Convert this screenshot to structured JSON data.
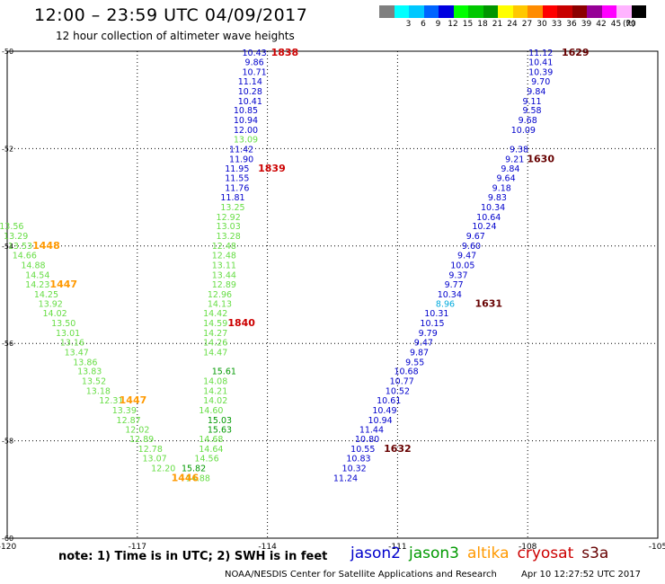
{
  "header": {
    "title": "12:00 – 23:59 UTC 04/09/2017",
    "subtitle": "12 hour collection of altimeter wave heights"
  },
  "colorbar": {
    "unit": "(ft)",
    "cells": [
      {
        "color": "#7f7f7f",
        "label": ""
      },
      {
        "color": "#00ffff",
        "label": "3"
      },
      {
        "color": "#00c8ff",
        "label": "6"
      },
      {
        "color": "#0064ff",
        "label": "9"
      },
      {
        "color": "#0000e0",
        "label": "12"
      },
      {
        "color": "#00ff00",
        "label": "15"
      },
      {
        "color": "#00c800",
        "label": "18"
      },
      {
        "color": "#009600",
        "label": "21"
      },
      {
        "color": "#ffff00",
        "label": "24"
      },
      {
        "color": "#ffc800",
        "label": "27"
      },
      {
        "color": "#ff8c00",
        "label": "30"
      },
      {
        "color": "#ff0000",
        "label": "33"
      },
      {
        "color": "#c80000",
        "label": "36"
      },
      {
        "color": "#8c0000",
        "label": "39"
      },
      {
        "color": "#960096",
        "label": "42"
      },
      {
        "color": "#ff00ff",
        "label": "45"
      },
      {
        "color": "#ffb4ff",
        "label": "70"
      },
      {
        "color": "#000000",
        "label": ""
      }
    ]
  },
  "colors": {
    "jason2": "#0000cc",
    "jason3": "#009900",
    "altika": "#ff9900",
    "cryosat": "#cc0000",
    "s3a": "#660000",
    "light_green": "#66dd44",
    "light_blue": "#00aadd"
  },
  "chart_data": {
    "type": "scatter",
    "xlim": [
      -120,
      -105
    ],
    "ylim": [
      -60,
      -50
    ],
    "x_ticks": [
      "-120",
      "-117",
      "-114",
      "-111",
      "-108",
      "-105"
    ],
    "y_ticks": [
      "-50",
      "-52",
      "-54",
      "-56",
      "-58",
      "-60"
    ],
    "grid": true,
    "series": [
      {
        "name": "jason2",
        "color": "#0000cc",
        "points": [
          {
            "x": -114.3,
            "y": -50.04,
            "label": "10.43"
          },
          {
            "x": -114.3,
            "y": -50.23,
            "label": "9.86"
          },
          {
            "x": -114.3,
            "y": -50.43,
            "label": "10.71"
          },
          {
            "x": -114.4,
            "y": -50.63,
            "label": "11.14"
          },
          {
            "x": -114.4,
            "y": -50.83,
            "label": "10.28"
          },
          {
            "x": -114.4,
            "y": -51.03,
            "label": "10.41"
          },
          {
            "x": -114.5,
            "y": -51.22,
            "label": "10.85"
          },
          {
            "x": -114.5,
            "y": -51.42,
            "label": "10.94"
          },
          {
            "x": -114.5,
            "y": -51.62,
            "label": "12.00"
          },
          {
            "x": -114.6,
            "y": -52.02,
            "label": "11.42"
          },
          {
            "x": -114.6,
            "y": -52.22,
            "label": "11.90"
          },
          {
            "x": -114.7,
            "y": -52.42,
            "label": "11.95"
          },
          {
            "x": -114.7,
            "y": -52.61,
            "label": "11.55"
          },
          {
            "x": -114.7,
            "y": -52.81,
            "label": "11.76"
          },
          {
            "x": -114.8,
            "y": -53.01,
            "label": "11.81"
          },
          {
            "x": -107.7,
            "y": -50.04,
            "label": "11.12"
          },
          {
            "x": -107.7,
            "y": -50.23,
            "label": "10.41"
          },
          {
            "x": -107.7,
            "y": -50.43,
            "label": "10.39"
          },
          {
            "x": -107.7,
            "y": -50.63,
            "label": "9.70"
          },
          {
            "x": -107.8,
            "y": -50.83,
            "label": "9.84"
          },
          {
            "x": -107.9,
            "y": -51.03,
            "label": "9.11"
          },
          {
            "x": -107.9,
            "y": -51.22,
            "label": "9.58"
          },
          {
            "x": -108.0,
            "y": -51.42,
            "label": "9.68"
          },
          {
            "x": -108.1,
            "y": -51.62,
            "label": "10.09"
          },
          {
            "x": -108.2,
            "y": -52.02,
            "label": "9.38"
          },
          {
            "x": -108.3,
            "y": -52.22,
            "label": "9.21"
          },
          {
            "x": -108.4,
            "y": -52.42,
            "label": "9.84"
          },
          {
            "x": -108.5,
            "y": -52.61,
            "label": "9.64"
          },
          {
            "x": -108.6,
            "y": -52.81,
            "label": "9.18"
          },
          {
            "x": -108.7,
            "y": -53.01,
            "label": "9.83"
          },
          {
            "x": -108.8,
            "y": -53.21,
            "label": "10.34"
          },
          {
            "x": -108.9,
            "y": -53.41,
            "label": "10.64"
          },
          {
            "x": -109.0,
            "y": -53.6,
            "label": "10.24"
          },
          {
            "x": -109.2,
            "y": -53.8,
            "label": "9.67"
          },
          {
            "x": -109.3,
            "y": -54.0,
            "label": "9.60"
          },
          {
            "x": -109.4,
            "y": -54.2,
            "label": "9.47"
          },
          {
            "x": -109.5,
            "y": -54.4,
            "label": "10.05"
          },
          {
            "x": -109.6,
            "y": -54.6,
            "label": "9.37"
          },
          {
            "x": -109.7,
            "y": -54.8,
            "label": "9.77"
          },
          {
            "x": -109.8,
            "y": -55.0,
            "label": "10.34"
          },
          {
            "x": -110.1,
            "y": -55.39,
            "label": "10.31"
          },
          {
            "x": -110.2,
            "y": -55.59,
            "label": "10.15"
          },
          {
            "x": -110.3,
            "y": -55.79,
            "label": "9.79"
          },
          {
            "x": -110.4,
            "y": -55.99,
            "label": "9.47"
          },
          {
            "x": -110.5,
            "y": -56.19,
            "label": "9.87"
          },
          {
            "x": -110.6,
            "y": -56.39,
            "label": "9.55"
          },
          {
            "x": -110.8,
            "y": -56.58,
            "label": "10.68"
          },
          {
            "x": -110.9,
            "y": -56.78,
            "label": "10.77"
          },
          {
            "x": -111.0,
            "y": -56.98,
            "label": "10.52"
          },
          {
            "x": -111.2,
            "y": -57.18,
            "label": "10.61"
          },
          {
            "x": -111.3,
            "y": -57.38,
            "label": "10.49"
          },
          {
            "x": -111.4,
            "y": -57.58,
            "label": "10.94"
          },
          {
            "x": -111.6,
            "y": -57.78,
            "label": "11.44"
          },
          {
            "x": -111.7,
            "y": -57.97,
            "label": "10.80"
          },
          {
            "x": -111.8,
            "y": -58.17,
            "label": "10.55"
          },
          {
            "x": -111.9,
            "y": -58.37,
            "label": "10.83"
          },
          {
            "x": -112.0,
            "y": -58.57,
            "label": "10.32"
          },
          {
            "x": -112.2,
            "y": -58.77,
            "label": "11.24"
          }
        ]
      },
      {
        "name": "jason3",
        "color": "#009900",
        "points": [
          {
            "x": -115.0,
            "y": -56.58,
            "label": "15.61"
          },
          {
            "x": -115.1,
            "y": -57.58,
            "label": "15.03"
          },
          {
            "x": -115.1,
            "y": -57.78,
            "label": "15.63"
          },
          {
            "x": -115.7,
            "y": -58.57,
            "label": "15.82"
          }
        ]
      },
      {
        "name": "altika",
        "color": "#ff9900",
        "points": []
      },
      {
        "name": "cryosat",
        "color": "#cc0000",
        "points": []
      },
      {
        "name": "s3a",
        "color": "#660000",
        "points": []
      }
    ],
    "light_green_points": [
      {
        "x": -114.5,
        "y": -51.82,
        "label": "13.09"
      },
      {
        "x": -114.8,
        "y": -53.21,
        "label": "13.25"
      },
      {
        "x": -114.9,
        "y": -53.41,
        "label": "12.92"
      },
      {
        "x": -114.9,
        "y": -53.6,
        "label": "13.03"
      },
      {
        "x": -114.9,
        "y": -53.8,
        "label": "13.28"
      },
      {
        "x": -115.0,
        "y": -54.0,
        "label": "12.48"
      },
      {
        "x": -115.0,
        "y": -54.2,
        "label": "12.48"
      },
      {
        "x": -115.0,
        "y": -54.4,
        "label": "13.11"
      },
      {
        "x": -115.0,
        "y": -54.6,
        "label": "13.44"
      },
      {
        "x": -115.0,
        "y": -54.8,
        "label": "12.89"
      },
      {
        "x": -115.1,
        "y": -55.0,
        "label": "12.96"
      },
      {
        "x": -115.1,
        "y": -55.19,
        "label": "14.13"
      },
      {
        "x": -115.2,
        "y": -55.39,
        "label": "14.42"
      },
      {
        "x": -115.2,
        "y": -55.59,
        "label": "14.59"
      },
      {
        "x": -115.2,
        "y": -55.79,
        "label": "14.27"
      },
      {
        "x": -115.2,
        "y": -55.99,
        "label": "14.26"
      },
      {
        "x": -115.2,
        "y": -56.19,
        "label": "14.47"
      },
      {
        "x": -115.2,
        "y": -56.78,
        "label": "14.08"
      },
      {
        "x": -115.2,
        "y": -56.98,
        "label": "14.21"
      },
      {
        "x": -115.2,
        "y": -57.18,
        "label": "14.02"
      },
      {
        "x": -115.3,
        "y": -57.38,
        "label": "14.60"
      },
      {
        "x": -115.3,
        "y": -57.97,
        "label": "14.68"
      },
      {
        "x": -115.3,
        "y": -58.17,
        "label": "14.64"
      },
      {
        "x": -115.4,
        "y": -58.37,
        "label": "14.56"
      },
      {
        "x": -115.6,
        "y": -58.77,
        "label": "14.88"
      },
      {
        "x": -119.9,
        "y": -53.6,
        "label": "13.56"
      },
      {
        "x": -119.8,
        "y": -53.8,
        "label": "13.29"
      },
      {
        "x": -119.7,
        "y": -54.0,
        "label": "13.53"
      },
      {
        "x": -119.6,
        "y": -54.2,
        "label": "14.66"
      },
      {
        "x": -119.4,
        "y": -54.4,
        "label": "14.88"
      },
      {
        "x": -119.3,
        "y": -54.6,
        "label": "14.54"
      },
      {
        "x": -119.3,
        "y": -54.8,
        "label": "14.23"
      },
      {
        "x": -119.1,
        "y": -55.0,
        "label": "14.25"
      },
      {
        "x": -119.0,
        "y": -55.19,
        "label": "13.92"
      },
      {
        "x": -118.9,
        "y": -55.39,
        "label": "14.02"
      },
      {
        "x": -118.7,
        "y": -55.59,
        "label": "13.50"
      },
      {
        "x": -118.6,
        "y": -55.79,
        "label": "13.01"
      },
      {
        "x": -118.5,
        "y": -55.99,
        "label": "13.16"
      },
      {
        "x": -118.4,
        "y": -56.19,
        "label": "13.47"
      },
      {
        "x": -118.2,
        "y": -56.39,
        "label": "13.86"
      },
      {
        "x": -118.1,
        "y": -56.58,
        "label": "13.83"
      },
      {
        "x": -118.0,
        "y": -56.78,
        "label": "13.52"
      },
      {
        "x": -117.9,
        "y": -56.98,
        "label": "13.18"
      },
      {
        "x": -117.6,
        "y": -57.18,
        "label": "12.31"
      },
      {
        "x": -117.3,
        "y": -57.38,
        "label": "13.39"
      },
      {
        "x": -117.2,
        "y": -57.58,
        "label": "12.87"
      },
      {
        "x": -117.0,
        "y": -57.78,
        "label": "12.02"
      },
      {
        "x": -116.9,
        "y": -57.97,
        "label": "12.89"
      },
      {
        "x": -116.7,
        "y": -58.17,
        "label": "12.78"
      },
      {
        "x": -116.6,
        "y": -58.37,
        "label": "13.07"
      },
      {
        "x": -116.4,
        "y": -58.57,
        "label": "12.20"
      }
    ],
    "light_blue_points": [
      {
        "x": -109.9,
        "y": -55.19,
        "label": "8.96"
      }
    ],
    "time_labels": [
      {
        "x": -113.6,
        "y": -50.04,
        "label": "1838",
        "color": "#cc0000"
      },
      {
        "x": -113.9,
        "y": -52.42,
        "label": "1839",
        "color": "#cc0000"
      },
      {
        "x": -114.6,
        "y": -55.59,
        "label": "1840",
        "color": "#cc0000"
      },
      {
        "x": -106.9,
        "y": -50.04,
        "label": "1629",
        "color": "#660000"
      },
      {
        "x": -107.7,
        "y": -52.22,
        "label": "1630",
        "color": "#660000"
      },
      {
        "x": -108.9,
        "y": -55.19,
        "label": "1631",
        "color": "#660000"
      },
      {
        "x": -111.0,
        "y": -58.17,
        "label": "1632",
        "color": "#660000"
      },
      {
        "x": -119.1,
        "y": -54.0,
        "label": "1448",
        "color": "#ff9900"
      },
      {
        "x": -118.7,
        "y": -54.8,
        "label": "1447",
        "color": "#ff9900"
      },
      {
        "x": -117.1,
        "y": -57.18,
        "label": "1447",
        "color": "#ff9900"
      },
      {
        "x": -115.9,
        "y": -58.77,
        "label": "1446",
        "color": "#ff9900"
      }
    ]
  },
  "bottom": {
    "note": "note: 1) Time is in UTC; 2) SWH is in feet",
    "legend": [
      {
        "name": "jason2",
        "color": "#0000cc"
      },
      {
        "name": "jason3",
        "color": "#009900"
      },
      {
        "name": "altika",
        "color": "#ff9900"
      },
      {
        "name": "cryosat",
        "color": "#cc0000"
      },
      {
        "name": "s3a",
        "color": "#660000"
      }
    ],
    "credit": "NOAA/NESDIS Center for Satellite Applications and Research",
    "timestamp": "Apr 10 12:27:52 UTC 2017"
  }
}
